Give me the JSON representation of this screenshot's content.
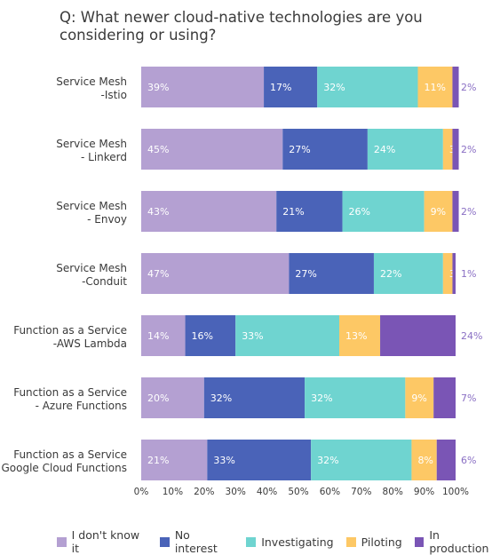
{
  "chart_data": {
    "type": "bar",
    "orientation": "horizontal-stacked-100",
    "title": "Q: What newer cloud-native technologies are you considering or using?",
    "xlabel": "",
    "ylabel": "",
    "xlim": [
      0,
      100
    ],
    "xticks": [
      "0%",
      "10%",
      "20%",
      "30%",
      "40%",
      "50%",
      "60%",
      "70%",
      "80%",
      "90%",
      "100%"
    ],
    "legend_position": "bottom",
    "categories": [
      [
        "Service Mesh",
        "-Istio"
      ],
      [
        "Service Mesh",
        "- Linkerd"
      ],
      [
        "Service Mesh",
        "- Envoy"
      ],
      [
        "Service Mesh",
        "-Conduit"
      ],
      [
        "Function as a Service",
        "-AWS Lambda"
      ],
      [
        "Function as a Service",
        "- Azure Functions"
      ],
      [
        "Function as a Service",
        "- Google Cloud Functions"
      ]
    ],
    "series": [
      {
        "name": "I don't know it",
        "color": "#b4a0d2",
        "label_color": "#ffffff",
        "values": [
          39,
          45,
          43,
          47,
          14,
          20,
          21
        ]
      },
      {
        "name": "No interest",
        "color": "#4a63b8",
        "label_color": "#ffffff",
        "values": [
          17,
          27,
          21,
          27,
          16,
          32,
          33
        ]
      },
      {
        "name": "Investigating",
        "color": "#6fd4d0",
        "label_color": "#ffffff",
        "values": [
          32,
          24,
          26,
          22,
          33,
          32,
          32
        ]
      },
      {
        "name": "Piloting",
        "color": "#fdc865",
        "label_color": "#ffffff",
        "values": [
          11,
          3,
          9,
          3,
          13,
          9,
          8
        ]
      },
      {
        "name": "In production",
        "color": "#7a55b5",
        "label_color": "#ffffff",
        "values": [
          2,
          2,
          2,
          1,
          24,
          7,
          6
        ]
      }
    ],
    "in_production_labels": [
      "2%",
      "2%",
      "2%",
      "1%",
      "24%",
      "7%",
      "6%"
    ],
    "outside_label_color": "#8a6fc4"
  }
}
